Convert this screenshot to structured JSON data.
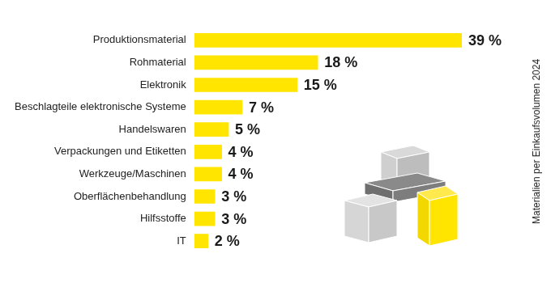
{
  "chart_data": {
    "type": "bar",
    "orientation": "horizontal",
    "categories": [
      "Produktionsmaterial",
      "Rohmaterial",
      "Elektronik",
      "Beschlagteile elektronische Systeme",
      "Handelswaren",
      "Verpackungen und Etiketten",
      "Werkzeuge/Maschinen",
      "Oberflächenbehandlung",
      "Hilfsstoffe",
      "IT"
    ],
    "values": [
      39,
      18,
      15,
      7,
      5,
      4,
      4,
      3,
      3,
      2
    ],
    "value_labels": [
      "39 %",
      "18 %",
      "15 %",
      "7 %",
      "5 %",
      "4 %",
      "4 %",
      "3 %",
      "3 %",
      "2 %"
    ],
    "data_labels": true,
    "color": "#ffe500",
    "xlim": [
      0,
      39
    ],
    "grid": false,
    "tick_labels": "y",
    "annotation": "Materialien per Einkaufsvolumen 2024"
  }
}
